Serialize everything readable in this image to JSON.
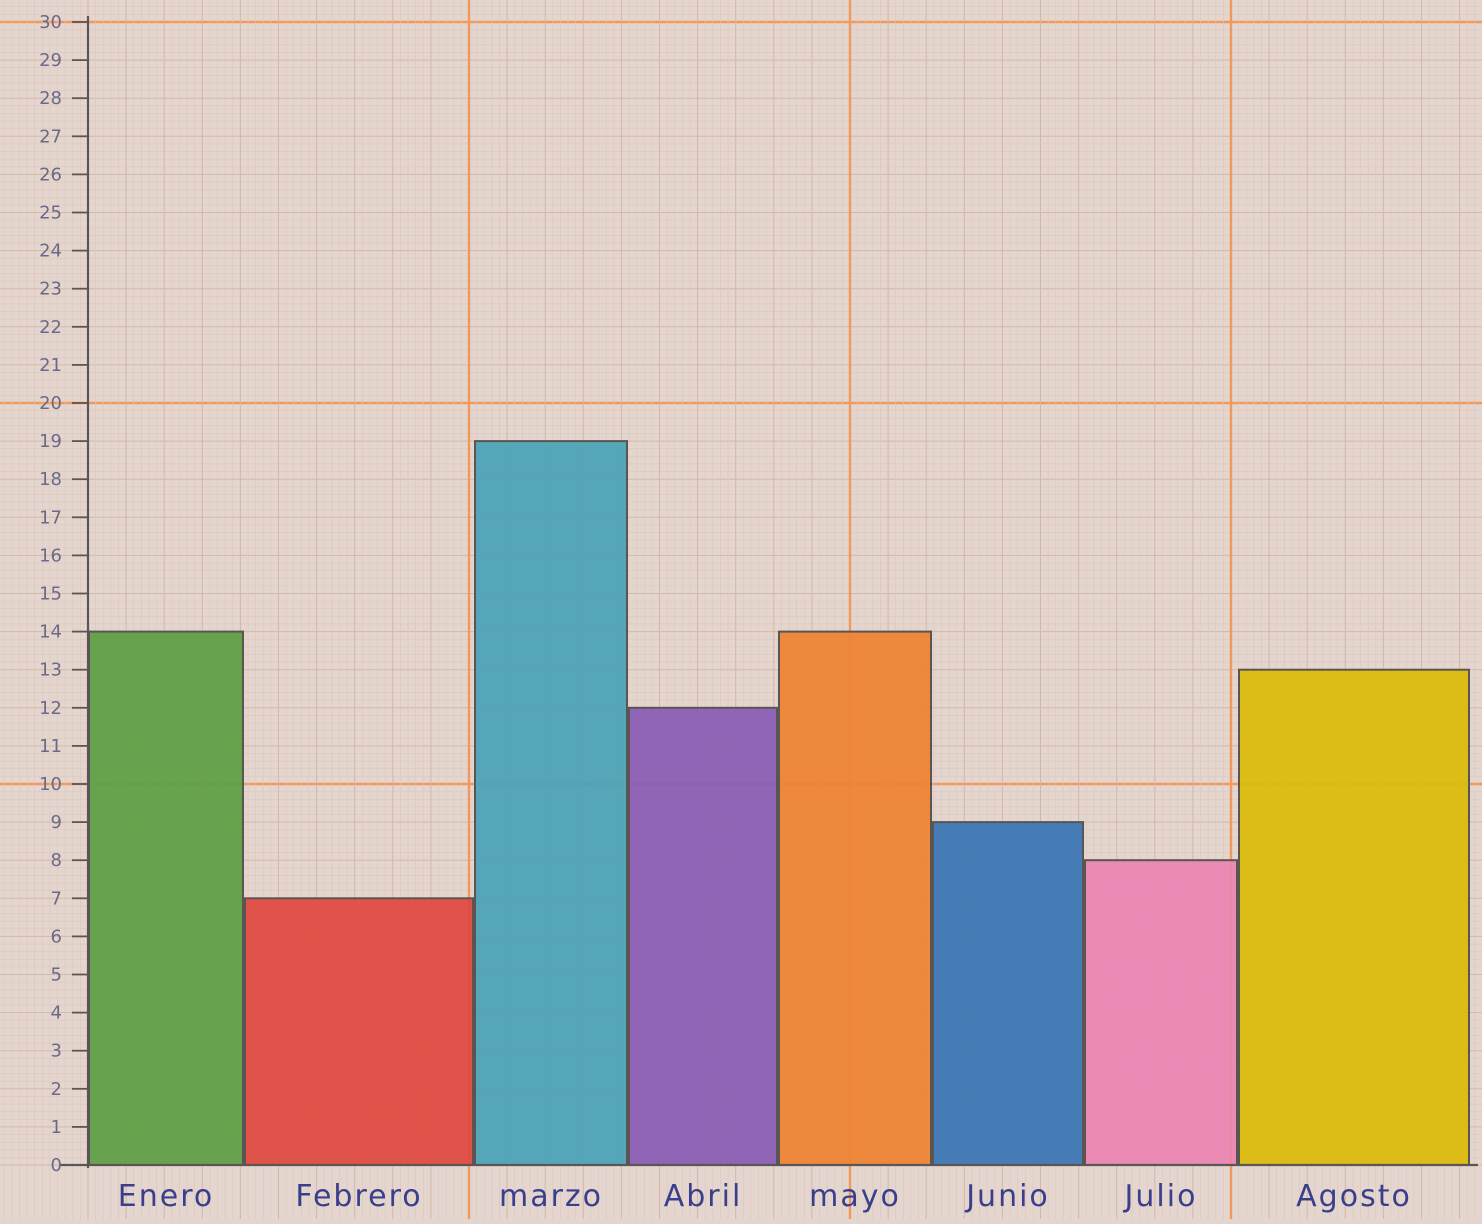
{
  "chart_data": {
    "type": "bar",
    "title": "",
    "xlabel": "",
    "ylabel": "",
    "ylim": [
      0,
      30
    ],
    "yticks": [
      "0",
      "1",
      "2",
      "3",
      "4",
      "5",
      "6",
      "7",
      "8",
      "9",
      "10",
      "11",
      "12",
      "13",
      "14",
      "15",
      "16",
      "17",
      "18",
      "19",
      "20",
      "21",
      "22",
      "23",
      "24",
      "25",
      "26",
      "27",
      "28",
      "29",
      "30"
    ],
    "categories": [
      "Enero",
      "Febrero",
      "marzo",
      "Abril",
      "mayo",
      "Junio",
      "Julio",
      "Agosto"
    ],
    "values": [
      14,
      7,
      19,
      12,
      14,
      9,
      8,
      13
    ],
    "colors": [
      "#5e9e44",
      "#e0493f",
      "#4aa3b7",
      "#8a5bb4",
      "#ee8232",
      "#3a76b5",
      "#ec84b1",
      "#dcba08"
    ],
    "grid": true,
    "legend": "none"
  }
}
